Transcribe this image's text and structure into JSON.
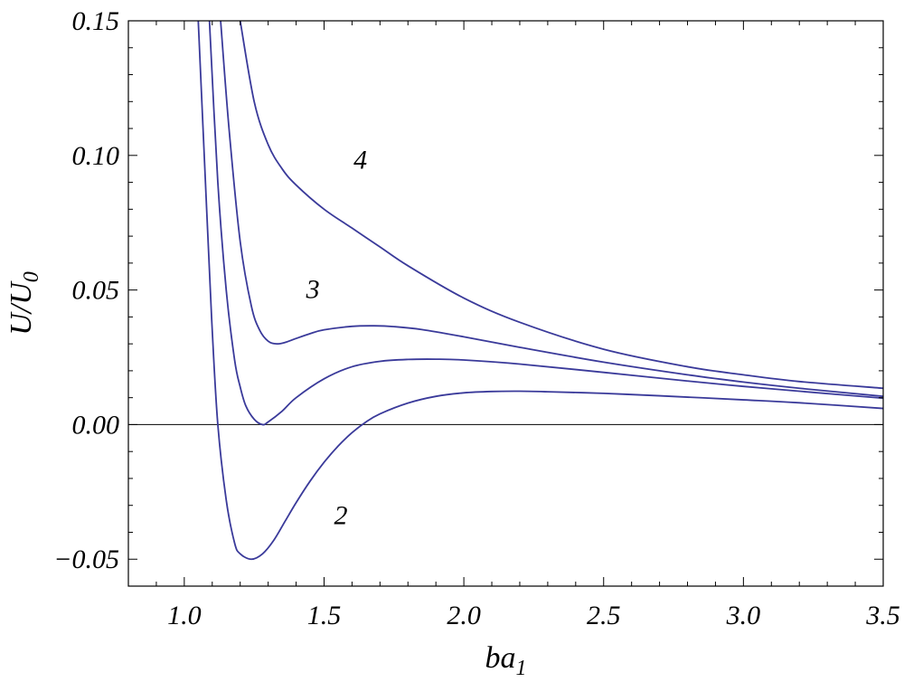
{
  "chart_data": {
    "type": "line",
    "xlabel": {
      "base": "ba",
      "sub": "1"
    },
    "ylabel": {
      "base": "U/U",
      "sub": "0"
    },
    "xlim": [
      0.8,
      3.5
    ],
    "ylim": [
      -0.06,
      0.15
    ],
    "x_ticks": [
      1.0,
      1.5,
      2.0,
      2.5,
      3.0,
      3.5
    ],
    "x_tick_labels": [
      "1.0",
      "1.5",
      "2.0",
      "2.5",
      "3.0",
      "3.5"
    ],
    "y_ticks": [
      -0.05,
      0.0,
      0.05,
      0.1,
      0.15
    ],
    "y_tick_labels": [
      "−0.05",
      "0.00",
      "0.05",
      "0.10",
      "0.15"
    ],
    "zero_line": true,
    "grid": false,
    "line_color": "#3a3a9a",
    "series": [
      {
        "name": "2",
        "x": [
          1.05,
          1.08,
          1.1,
          1.12,
          1.15,
          1.18,
          1.2,
          1.24,
          1.28,
          1.32,
          1.36,
          1.4,
          1.45,
          1.5,
          1.55,
          1.6,
          1.65,
          1.7,
          1.8,
          1.9,
          2.0,
          2.1,
          2.2,
          2.3,
          2.5,
          2.7,
          3.0,
          3.2,
          3.5
        ],
        "y": [
          0.15,
          0.08,
          0.035,
          0.0,
          -0.028,
          -0.044,
          -0.048,
          -0.05,
          -0.048,
          -0.043,
          -0.036,
          -0.029,
          -0.021,
          -0.014,
          -0.008,
          -0.003,
          0.001,
          0.004,
          0.008,
          0.0105,
          0.0118,
          0.0123,
          0.0124,
          0.0122,
          0.0116,
          0.0107,
          0.0092,
          0.0081,
          0.006
        ]
      },
      {
        "name": "",
        "x": [
          1.09,
          1.12,
          1.15,
          1.18,
          1.2,
          1.22,
          1.25,
          1.28,
          1.3,
          1.35,
          1.4,
          1.5,
          1.6,
          1.7,
          1.8,
          1.9,
          2.0,
          2.2,
          2.5,
          2.8,
          3.0,
          3.2,
          3.5
        ],
        "y": [
          0.15,
          0.09,
          0.05,
          0.024,
          0.014,
          0.007,
          0.002,
          0.0,
          0.001,
          0.005,
          0.01,
          0.017,
          0.0215,
          0.0235,
          0.0242,
          0.0243,
          0.024,
          0.0225,
          0.0194,
          0.0162,
          0.0142,
          0.0124,
          0.0098
        ]
      },
      {
        "name": "3",
        "x": [
          1.13,
          1.16,
          1.2,
          1.24,
          1.27,
          1.3,
          1.33,
          1.36,
          1.4,
          1.45,
          1.5,
          1.6,
          1.68,
          1.75,
          1.85,
          2.0,
          2.2,
          2.5,
          2.8,
          3.0,
          3.2,
          3.5
        ],
        "y": [
          0.15,
          0.11,
          0.068,
          0.044,
          0.035,
          0.031,
          0.03,
          0.0305,
          0.032,
          0.0338,
          0.0352,
          0.0365,
          0.0367,
          0.0364,
          0.0353,
          0.0326,
          0.0287,
          0.0232,
          0.0185,
          0.0158,
          0.0135,
          0.0105
        ]
      },
      {
        "name": "4",
        "x": [
          1.2,
          1.25,
          1.3,
          1.35,
          1.4,
          1.5,
          1.6,
          1.7,
          1.8,
          2.0,
          2.2,
          2.5,
          2.8,
          3.0,
          3.2,
          3.5
        ],
        "y": [
          0.15,
          0.12,
          0.104,
          0.095,
          0.089,
          0.08,
          0.073,
          0.066,
          0.059,
          0.047,
          0.038,
          0.028,
          0.0215,
          0.0185,
          0.016,
          0.0135
        ]
      }
    ],
    "annotations": [
      {
        "text": "4",
        "x": 1.63,
        "y": 0.095
      },
      {
        "text": "3",
        "x": 1.46,
        "y": 0.047
      },
      {
        "text": "2",
        "x": 1.56,
        "y": -0.037
      }
    ]
  }
}
